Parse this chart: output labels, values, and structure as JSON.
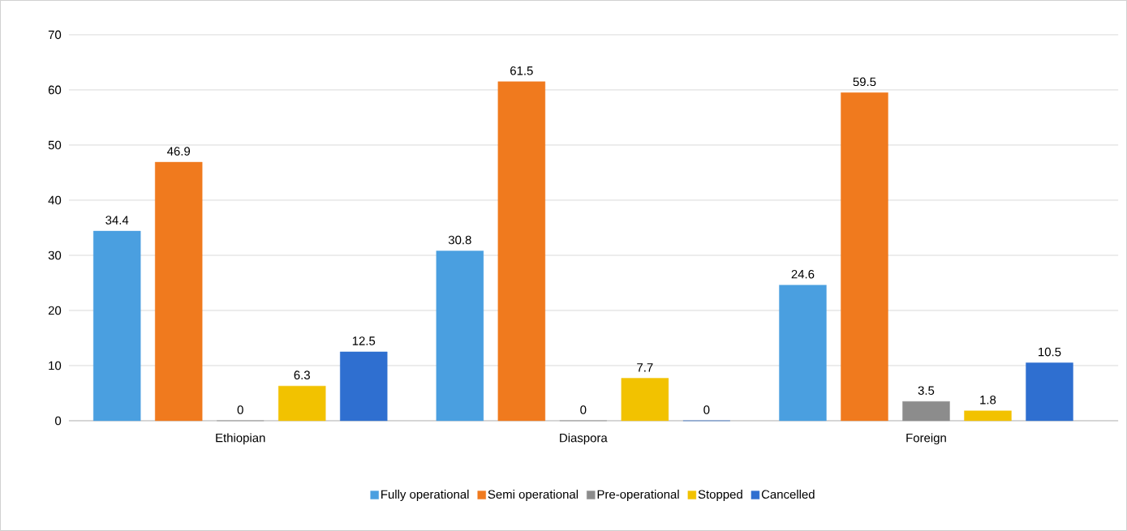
{
  "chart_data": {
    "type": "bar",
    "categories": [
      "Ethiopian",
      "Diaspora",
      "Foreign"
    ],
    "series": [
      {
        "name": "Fully operational",
        "color": "#4a9fe0",
        "values": [
          34.4,
          30.8,
          24.6
        ]
      },
      {
        "name": "Semi operational",
        "color": "#f07a1e",
        "values": [
          46.9,
          61.5,
          59.5
        ]
      },
      {
        "name": "Pre-operational",
        "color": "#8c8c8c",
        "values": [
          0,
          0,
          3.5
        ]
      },
      {
        "name": "Stopped",
        "color": "#f2c200",
        "values": [
          6.3,
          7.7,
          1.8
        ]
      },
      {
        "name": "Cancelled",
        "color": "#2f6fd0",
        "values": [
          12.5,
          0,
          10.5
        ]
      }
    ],
    "ylim": [
      0,
      70
    ],
    "yticks": [
      0,
      10,
      20,
      30,
      40,
      50,
      60,
      70
    ],
    "grid": "y",
    "legend": "bottom",
    "data_labels": true
  }
}
